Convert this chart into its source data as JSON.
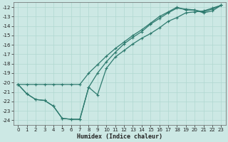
{
  "xlabel": "Humidex (Indice chaleur)",
  "background_color": "#cce8e4",
  "grid_color": "#b0d8d0",
  "line_color": "#2d7a6e",
  "x_data": [
    0,
    1,
    2,
    3,
    4,
    5,
    6,
    7,
    8,
    9,
    10,
    11,
    12,
    13,
    14,
    15,
    16,
    17,
    18,
    19,
    20,
    21,
    22,
    23
  ],
  "line_u_y": [
    -20.2,
    -21.2,
    -21.8,
    -21.9,
    -22.5,
    -23.8,
    -23.9,
    -23.9,
    -20.5,
    -21.3,
    -18.5,
    -17.3,
    -16.6,
    -15.9,
    -15.3,
    -14.8,
    -14.2,
    -13.5,
    -13.1,
    -12.6,
    -12.5,
    -12.4,
    -12.1,
    -11.8
  ],
  "line_top_y": [
    -20.2,
    -21.2,
    -21.8,
    -21.9,
    -22.5,
    -23.8,
    -23.9,
    -23.9,
    -20.5,
    -19.0,
    -17.8,
    -16.8,
    -15.9,
    -15.2,
    -14.6,
    -13.8,
    -13.2,
    -12.6,
    -12.1,
    -12.2,
    -12.3,
    -12.6,
    -12.4,
    -11.8
  ],
  "line_straight_y": [
    -20.2,
    -20.2,
    -20.2,
    -20.2,
    -20.2,
    -20.2,
    -20.2,
    -20.2,
    -19.0,
    -18.1,
    -17.2,
    -16.4,
    -15.7,
    -15.0,
    -14.4,
    -13.7,
    -13.0,
    -12.5,
    -12.0,
    -12.3,
    -12.3,
    -12.5,
    -12.2,
    -11.8
  ],
  "ylim": [
    -24.5,
    -11.5
  ],
  "xlim": [
    -0.5,
    23.5
  ],
  "yticks": [
    -12,
    -13,
    -14,
    -15,
    -16,
    -17,
    -18,
    -19,
    -20,
    -21,
    -22,
    -23,
    -24
  ],
  "xticks": [
    0,
    1,
    2,
    3,
    4,
    5,
    6,
    7,
    8,
    9,
    10,
    11,
    12,
    13,
    14,
    15,
    16,
    17,
    18,
    19,
    20,
    21,
    22,
    23
  ],
  "figsize": [
    3.2,
    2.0
  ],
  "dpi": 100
}
